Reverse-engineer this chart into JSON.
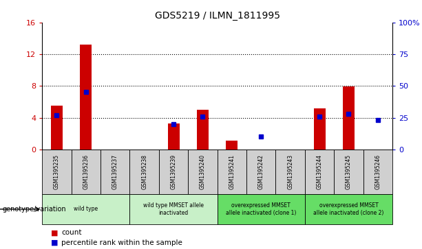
{
  "title": "GDS5219 / ILMN_1811995",
  "samples": [
    "GSM1395235",
    "GSM1395236",
    "GSM1395237",
    "GSM1395238",
    "GSM1395239",
    "GSM1395240",
    "GSM1395241",
    "GSM1395242",
    "GSM1395243",
    "GSM1395244",
    "GSM1395245",
    "GSM1395246"
  ],
  "counts": [
    5.5,
    13.2,
    0,
    0,
    3.3,
    5.0,
    1.1,
    0,
    0,
    5.2,
    7.9,
    0
  ],
  "percentiles": [
    27,
    45,
    0,
    0,
    20,
    26,
    0,
    10,
    0,
    26,
    28,
    23
  ],
  "ylim_left": [
    0,
    16
  ],
  "ylim_right": [
    0,
    100
  ],
  "yticks_left": [
    0,
    4,
    8,
    12,
    16
  ],
  "yticks_right": [
    0,
    25,
    50,
    75,
    100
  ],
  "yticklabels_right": [
    "0",
    "25",
    "50",
    "75",
    "100%"
  ],
  "hlines": [
    4,
    8,
    12
  ],
  "bar_color": "#cc0000",
  "dot_color": "#0000cc",
  "groups": [
    {
      "label": "wild type",
      "start": 0,
      "end": 3,
      "color": "#c8f0c8"
    },
    {
      "label": "wild type MMSET allele\ninactivated",
      "start": 3,
      "end": 6,
      "color": "#c8f0c8"
    },
    {
      "label": "overexpressed MMSET\nallele inactivated (clone 1)",
      "start": 6,
      "end": 9,
      "color": "#66dd66"
    },
    {
      "label": "overexpressed MMSET\nallele inactivated (clone 2)",
      "start": 9,
      "end": 12,
      "color": "#66dd66"
    }
  ],
  "genotype_label": "genotype/variation",
  "legend_count": "count",
  "legend_percentile": "percentile rank within the sample",
  "bg_color": "#ffffff",
  "tick_color_left": "#cc0000",
  "tick_color_right": "#0000cc",
  "sample_box_color": "#d0d0d0",
  "bar_width": 0.4
}
